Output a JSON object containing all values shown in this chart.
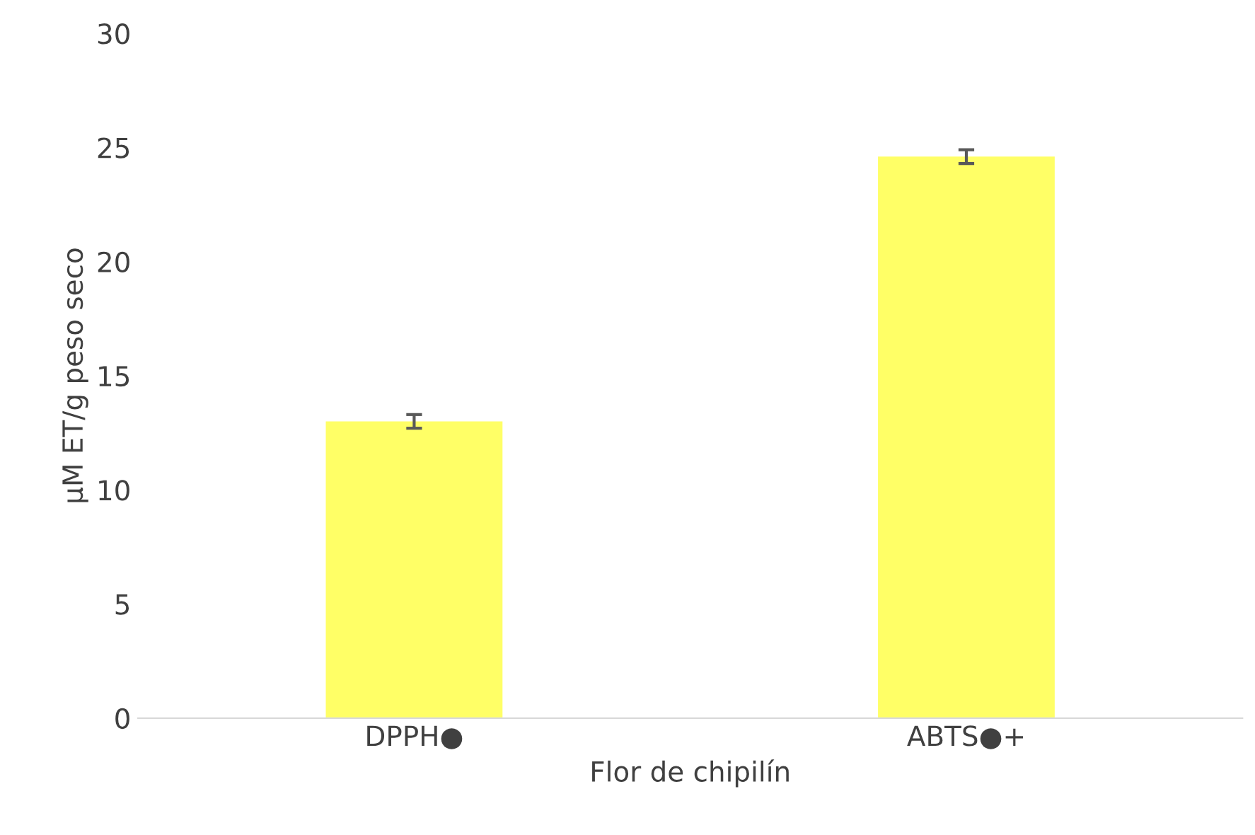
{
  "chart_data": {
    "type": "bar",
    "xlabel": "Flor de chipilín",
    "ylabel": "µM ET/g peso seco",
    "categories": [
      "DPPH●",
      "ABTS●+"
    ],
    "values": [
      13.0,
      24.6
    ],
    "errors": [
      0.3,
      0.3
    ],
    "color": "#ffff66",
    "ylim": [
      0,
      30
    ],
    "yticks": [
      0,
      5,
      10,
      15,
      20,
      25,
      30
    ],
    "grid": false
  }
}
